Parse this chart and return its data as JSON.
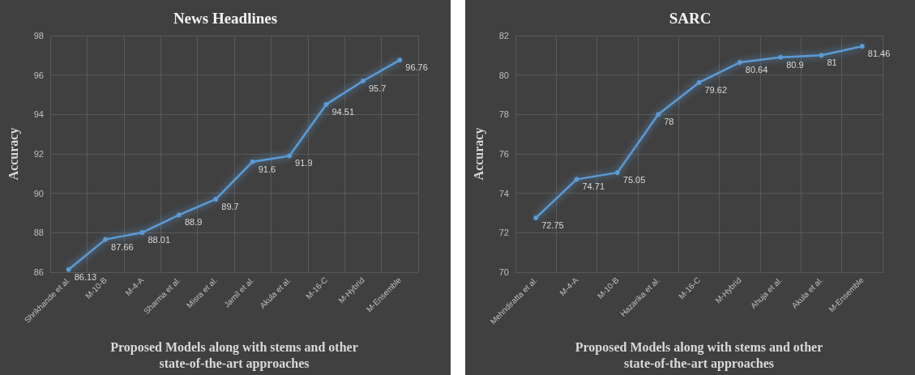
{
  "chart_data": [
    {
      "type": "line",
      "title": "News Headlines",
      "xlabel": "Proposed Models along with stems and other\nstate-of-the-art approaches",
      "ylabel": "Accuracy",
      "categories": [
        "Shrikhande et al.",
        "M-10-B",
        "M-4-A",
        "Sharma et al.",
        "Misra et al.",
        "Jamil et al.",
        "Akula et al.",
        "M-16-C",
        "M-Hybrid",
        "M-Ensemble"
      ],
      "series": [
        {
          "color": "#5b9bd5",
          "values": [
            86.13,
            87.66,
            88.01,
            88.9,
            89.7,
            91.6,
            91.9,
            94.51,
            95.7,
            96.76
          ]
        }
      ],
      "ylim": [
        86,
        98
      ],
      "yticks": [
        86,
        88,
        90,
        92,
        94,
        96,
        98
      ],
      "grid": true,
      "marker": "circle",
      "data_labels": true
    },
    {
      "type": "line",
      "title": "SARC",
      "xlabel": "Proposed Models along with stems and other\nstate-of-the-art approaches",
      "ylabel": "Accuracy",
      "categories": [
        "Mehndiratta et al.",
        "M-4-A",
        "M-10-B",
        "Hazarika et al.",
        "M-16-C",
        "M-Hybrid",
        "Ahuja et al.",
        "Akula et al.",
        "M-Ensemble"
      ],
      "series": [
        {
          "color": "#5b9bd5",
          "values": [
            72.75,
            74.71,
            75.05,
            78,
            79.62,
            80.64,
            80.9,
            81,
            81.46
          ]
        }
      ],
      "ylim": [
        70,
        82
      ],
      "yticks": [
        70,
        72,
        74,
        76,
        78,
        80,
        82
      ],
      "grid": true,
      "marker": "circle",
      "data_labels": true
    }
  ]
}
